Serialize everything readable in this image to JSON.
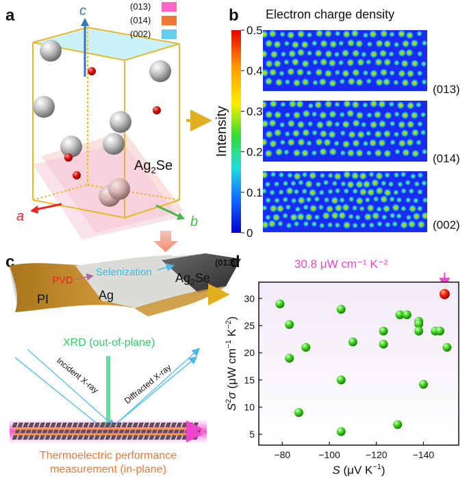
{
  "panel_labels": {
    "a": "a",
    "b": "b",
    "c": "c",
    "d": "d"
  },
  "panel_a": {
    "axis_c": "c",
    "axis_a": "a",
    "axis_b": "b",
    "compound": "Ag",
    "compound_sub": "2",
    "compound_rest": "Se",
    "legend": [
      {
        "label": "(013)",
        "color": "#ff66cc"
      },
      {
        "label": "(014)",
        "color": "#ee7733"
      },
      {
        "label": "(002)",
        "color": "#66ccee"
      }
    ]
  },
  "panel_b": {
    "title": "Electron charge density",
    "colorbar_label": "Intensity",
    "colorbar_ticks": [
      "0.5",
      "0.4",
      "0.3",
      "0.2",
      "0.1",
      "0"
    ],
    "maps": [
      {
        "label": "(013)"
      },
      {
        "label": "(014)"
      },
      {
        "label": "(002)"
      }
    ]
  },
  "panel_c": {
    "pvd": "PVD",
    "selenization": "Selenization",
    "plane": "(013)",
    "pi": "PI",
    "ag": "Ag",
    "ag2se": "Ag",
    "ag2se_sub": "2",
    "ag2se_rest": "Se",
    "xrd": "XRD (out-of-plane)",
    "incident": "Incident X-ray",
    "diffracted": "Diffracted X-ray",
    "measure_line1": "Thermoelectric performance",
    "measure_line2": "measurement (in-plane)"
  },
  "chart_data": {
    "type": "scatter",
    "xlabel": "S (μV K⁻¹)",
    "ylabel": "S²σ (μW cm⁻¹ K⁻²)",
    "xlim": [
      -70,
      -155
    ],
    "ylim": [
      3,
      33
    ],
    "xticks": [
      -80,
      -100,
      -120,
      -140
    ],
    "yticks": [
      5,
      10,
      15,
      20,
      25,
      30
    ],
    "annotation": "30.8 μW cm⁻¹ K⁻²",
    "highlight": {
      "x": -149,
      "y": 30.8
    },
    "points": [
      {
        "x": -79,
        "y": 29
      },
      {
        "x": -83,
        "y": 25.2
      },
      {
        "x": -83,
        "y": 19
      },
      {
        "x": -87,
        "y": 9
      },
      {
        "x": -90,
        "y": 21
      },
      {
        "x": -105,
        "y": 28
      },
      {
        "x": -105,
        "y": 15
      },
      {
        "x": -105,
        "y": 5.5
      },
      {
        "x": -110,
        "y": 22
      },
      {
        "x": -123,
        "y": 24
      },
      {
        "x": -123,
        "y": 21.6
      },
      {
        "x": -129,
        "y": 6.8
      },
      {
        "x": -130,
        "y": 27
      },
      {
        "x": -133,
        "y": 27
      },
      {
        "x": -138,
        "y": 25.8
      },
      {
        "x": -138,
        "y": 25.3
      },
      {
        "x": -138,
        "y": 24
      },
      {
        "x": -140,
        "y": 14.2
      },
      {
        "x": -145,
        "y": 24
      },
      {
        "x": -147,
        "y": 24
      },
      {
        "x": -150,
        "y": 21
      }
    ]
  }
}
